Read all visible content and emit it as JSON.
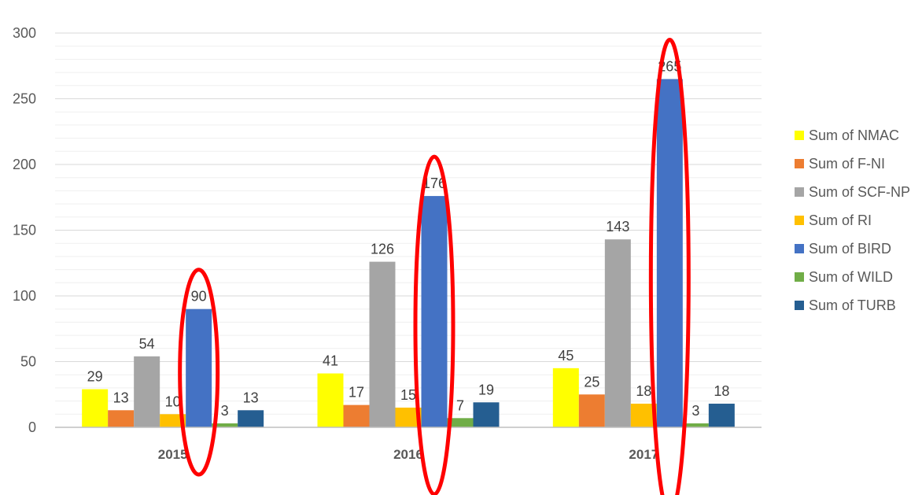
{
  "chart_data": {
    "type": "bar",
    "title": "",
    "xlabel": "",
    "ylabel": "",
    "categories": [
      "2015",
      "2016",
      "2017"
    ],
    "ylim": [
      0,
      300
    ],
    "yticks": [
      "0",
      "50",
      "100",
      "150",
      "200",
      "250",
      "300"
    ],
    "grid": true,
    "legend_position": "right",
    "series": [
      {
        "name": "Sum of NMAC",
        "color": "#FFFF00",
        "values": [
          29,
          41,
          45
        ]
      },
      {
        "name": "Sum of F-NI",
        "color": "#ED7D31",
        "values": [
          13,
          17,
          25
        ]
      },
      {
        "name": "Sum of SCF-NP",
        "color": "#A5A5A5",
        "values": [
          54,
          126,
          143
        ]
      },
      {
        "name": "Sum of RI",
        "color": "#FFC000",
        "values": [
          10,
          15,
          18
        ]
      },
      {
        "name": "Sum of BIRD",
        "color": "#4472C4",
        "values": [
          90,
          176,
          265
        ]
      },
      {
        "name": "Sum of WILD",
        "color": "#70AD47",
        "values": [
          3,
          7,
          3
        ]
      },
      {
        "name": "Sum of TURB",
        "color": "#255E91",
        "values": [
          13,
          19,
          18
        ]
      }
    ],
    "annotations": [
      {
        "type": "ellipse",
        "target_series": "Sum of BIRD",
        "categories": [
          "2015",
          "2016",
          "2017"
        ],
        "color": "#FF0000"
      }
    ]
  }
}
